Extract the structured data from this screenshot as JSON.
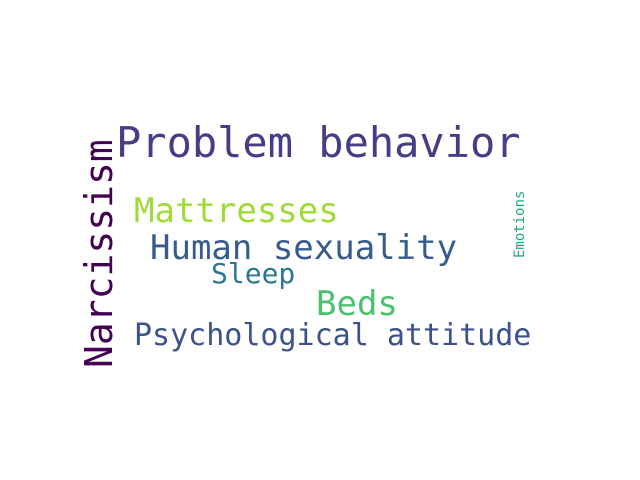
{
  "words": {
    "problem_behavior": {
      "text": "Problem behavior",
      "color": "#433e85"
    },
    "narcissism": {
      "text": "Narcissism",
      "color": "#440154"
    },
    "mattresses": {
      "text": "Mattresses",
      "color": "#a0da39"
    },
    "human_sexuality": {
      "text": "Human sexuality",
      "color": "#365c8d"
    },
    "sleep": {
      "text": "Sleep",
      "color": "#2a788e"
    },
    "beds": {
      "text": "Beds",
      "color": "#4ac16d"
    },
    "psychological_attitude": {
      "text": "Psychological attitude",
      "color": "#3b528b"
    },
    "emotions": {
      "text": "Emotions",
      "color": "#22a884"
    }
  }
}
